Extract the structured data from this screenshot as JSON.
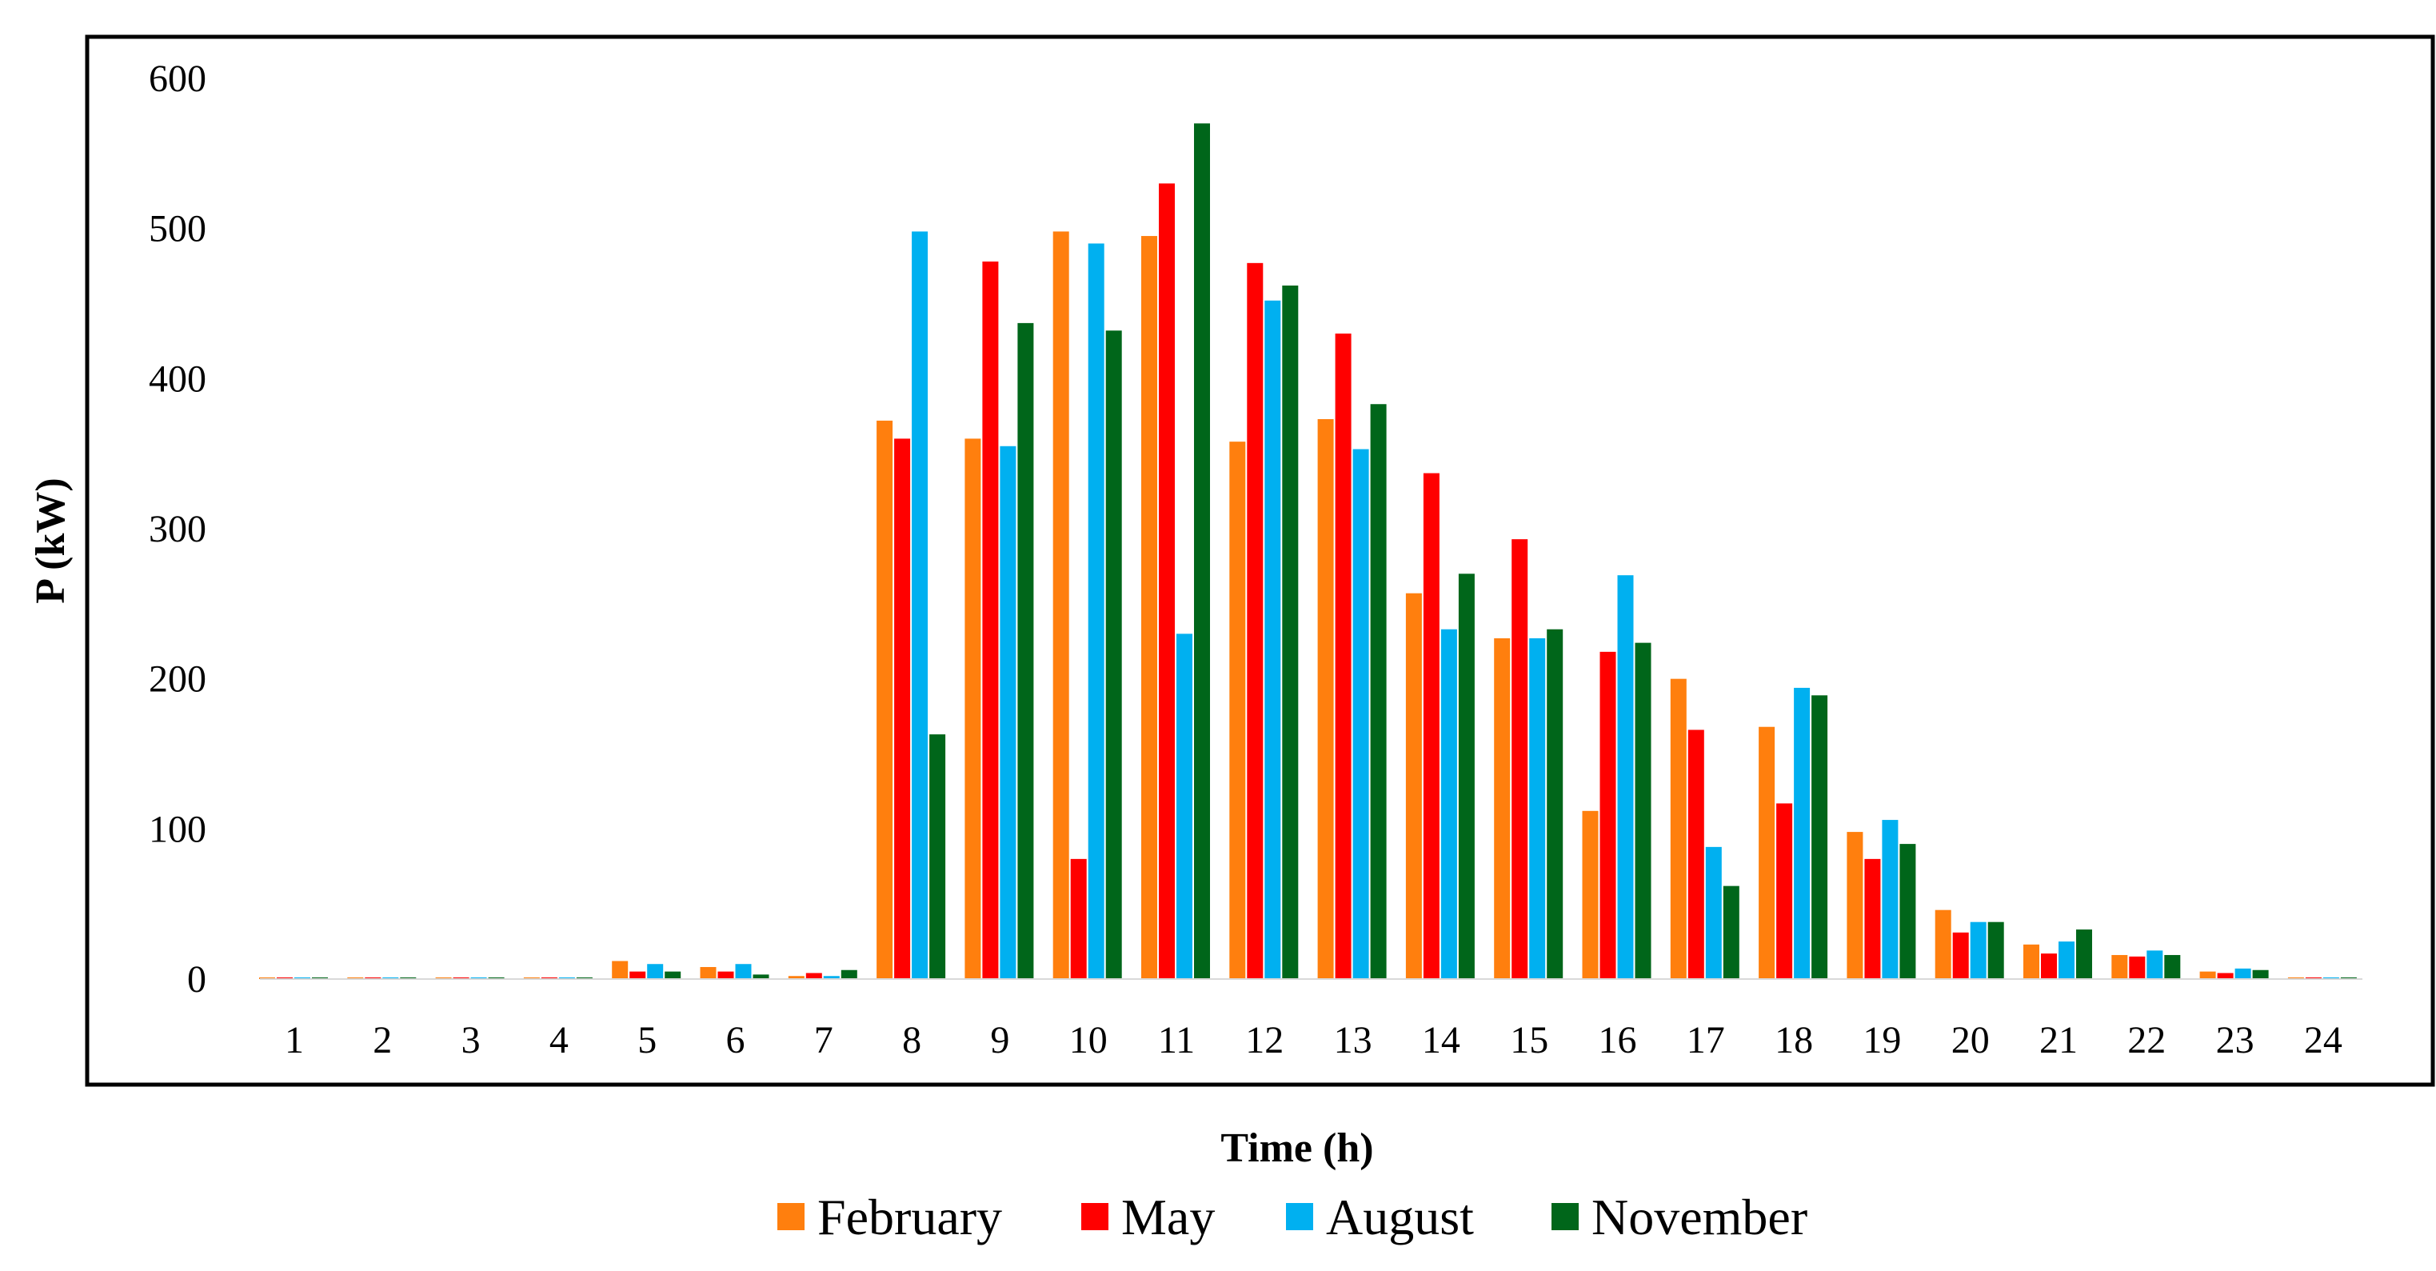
{
  "chart_data": {
    "type": "bar",
    "title": "",
    "xlabel": "Time (h)",
    "ylabel": "P (kW)",
    "ylim": [
      0,
      600
    ],
    "yticks": [
      "0",
      "100",
      "200",
      "300",
      "400",
      "500",
      "600"
    ],
    "grid": false,
    "legend_position": "bottom-center",
    "categories": [
      "1",
      "2",
      "3",
      "4",
      "5",
      "6",
      "7",
      "8",
      "9",
      "10",
      "11",
      "12",
      "13",
      "14",
      "15",
      "16",
      "17",
      "18",
      "19",
      "20",
      "21",
      "22",
      "23",
      "24"
    ],
    "series": [
      {
        "name": "February",
        "color": "#FF7F0E",
        "values": [
          0,
          0,
          0,
          0,
          12,
          8,
          2,
          372,
          360,
          498,
          495,
          358,
          373,
          257,
          227,
          112,
          200,
          168,
          98,
          46,
          23,
          16,
          5,
          0
        ]
      },
      {
        "name": "May",
        "color": "#FF0000",
        "values": [
          0,
          0,
          0,
          0,
          5,
          5,
          4,
          360,
          478,
          80,
          530,
          477,
          430,
          337,
          293,
          218,
          166,
          117,
          80,
          31,
          17,
          15,
          4,
          0
        ]
      },
      {
        "name": "August",
        "color": "#00B0F0",
        "values": [
          0,
          0,
          0,
          0,
          10,
          10,
          2,
          498,
          355,
          490,
          230,
          452,
          353,
          233,
          227,
          269,
          88,
          194,
          106,
          38,
          25,
          19,
          7,
          0
        ]
      },
      {
        "name": "November",
        "color": "#00661A",
        "values": [
          0,
          0,
          0,
          0,
          5,
          3,
          6,
          163,
          437,
          432,
          570,
          462,
          383,
          270,
          233,
          224,
          62,
          189,
          90,
          38,
          33,
          16,
          6,
          0
        ]
      }
    ]
  }
}
